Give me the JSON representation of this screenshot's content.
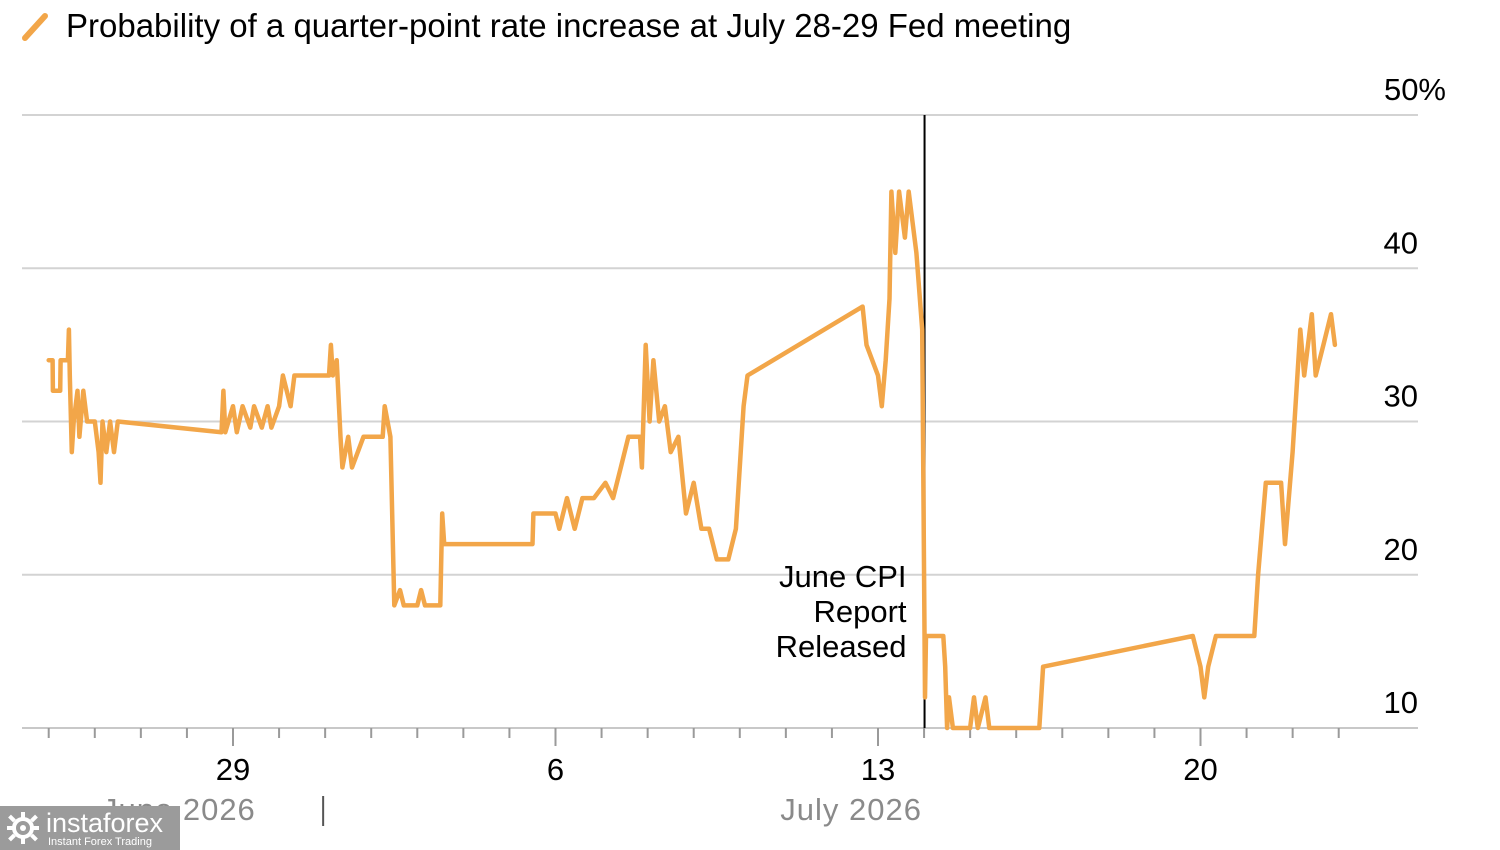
{
  "chart_data": {
    "type": "line",
    "title": "Probability of a quarter-point rate increase at July 28-29 Fed meeting",
    "colors": {
      "series": "#f2a649",
      "event_line": "#000000",
      "grid": "#d3d3d3"
    },
    "ylim": [
      10,
      50
    ],
    "y_ticks": [
      10,
      20,
      30,
      40,
      50
    ],
    "y_tick_labels": [
      "10",
      "20",
      "30",
      "40",
      "50%"
    ],
    "grid": true,
    "x_tick_labels": [
      "29",
      "6",
      "13",
      "20"
    ],
    "month_labels": [
      "June 2026",
      "July 2026"
    ],
    "annotation": {
      "text_lines": [
        "June CPI",
        "Report",
        "Released"
      ]
    },
    "series": [
      {
        "points": [
          [
            "Jun 25 00:00",
            34
          ],
          [
            "Jun 25 02:00",
            34
          ],
          [
            "Jun 25 02:10",
            32
          ],
          [
            "Jun 25 06:00",
            32
          ],
          [
            "Jun 25 06:10",
            34
          ],
          [
            "Jun 25 10:00",
            34
          ],
          [
            "Jun 25 10:30",
            36
          ],
          [
            "Jun 25 11:00",
            33
          ],
          [
            "Jun 25 12:00",
            28
          ],
          [
            "Jun 25 13:00",
            30
          ],
          [
            "Jun 25 15:00",
            32
          ],
          [
            "Jun 25 16:00",
            29
          ],
          [
            "Jun 25 18:00",
            32
          ],
          [
            "Jun 25 20:00",
            30
          ],
          [
            "Jun 26 00:00",
            30
          ],
          [
            "Jun 26 02:00",
            28
          ],
          [
            "Jun 26 03:00",
            26
          ],
          [
            "Jun 26 04:00",
            30
          ],
          [
            "Jun 26 06:00",
            28
          ],
          [
            "Jun 26 08:00",
            30
          ],
          [
            "Jun 26 10:00",
            28
          ],
          [
            "Jun 26 12:00",
            30
          ],
          [
            "Jun 28 18:00",
            29.3
          ],
          [
            "Jun 28 19:00",
            32
          ],
          [
            "Jun 28 20:00",
            29.3
          ],
          [
            "Jun 29 00:00",
            31
          ],
          [
            "Jun 29 02:00",
            29.3
          ],
          [
            "Jun 29 05:00",
            31
          ],
          [
            "Jun 29 09:00",
            29.6
          ],
          [
            "Jun 29 11:00",
            31
          ],
          [
            "Jun 29 15:00",
            29.6
          ],
          [
            "Jun 29 18:00",
            31
          ],
          [
            "Jun 29 20:00",
            29.6
          ],
          [
            "Jun 30 00:00",
            31
          ],
          [
            "Jun 30 02:00",
            33
          ],
          [
            "Jun 30 06:00",
            31
          ],
          [
            "Jun 30 08:00",
            33
          ],
          [
            "Jul 1 02:00",
            33
          ],
          [
            "Jul 1 03:00",
            35
          ],
          [
            "Jul 1 04:00",
            33
          ],
          [
            "Jul 1 06:00",
            34
          ],
          [
            "Jul 1 08:00",
            29
          ],
          [
            "Jul 1 09:00",
            27
          ],
          [
            "Jul 1 12:00",
            29
          ],
          [
            "Jul 1 14:00",
            27
          ],
          [
            "Jul 1 20:00",
            29
          ],
          [
            "Jul 2 06:00",
            29
          ],
          [
            "Jul 2 07:00",
            31
          ],
          [
            "Jul 2 10:00",
            29
          ],
          [
            "Jul 2 12:00",
            18
          ],
          [
            "Jul 2 15:00",
            19
          ],
          [
            "Jul 2 17:00",
            18
          ],
          [
            "Jul 3 00:00",
            18
          ],
          [
            "Jul 3 02:00",
            19
          ],
          [
            "Jul 3 04:00",
            18
          ],
          [
            "Jul 3 12:00",
            18
          ],
          [
            "Jul 3 13:00",
            24
          ],
          [
            "Jul 3 14:00",
            22
          ],
          [
            "Jul 5 12:00",
            22
          ],
          [
            "Jul 5 12:30",
            24
          ],
          [
            "Jul 6 00:00",
            24
          ],
          [
            "Jul 6 02:00",
            23
          ],
          [
            "Jul 6 06:00",
            25
          ],
          [
            "Jul 6 10:00",
            23
          ],
          [
            "Jul 6 14:00",
            25
          ],
          [
            "Jul 6 20:00",
            25
          ],
          [
            "Jul 7 02:00",
            26
          ],
          [
            "Jul 7 06:00",
            25
          ],
          [
            "Jul 7 10:00",
            27
          ],
          [
            "Jul 7 14:00",
            29
          ],
          [
            "Jul 7 20:00",
            29
          ],
          [
            "Jul 7 21:00",
            27
          ],
          [
            "Jul 7 23:00",
            35
          ],
          [
            "Jul 8 01:00",
            30
          ],
          [
            "Jul 8 03:00",
            34
          ],
          [
            "Jul 8 06:00",
            30
          ],
          [
            "Jul 8 09:00",
            31
          ],
          [
            "Jul 8 12:00",
            28
          ],
          [
            "Jul 8 16:00",
            29
          ],
          [
            "Jul 8 20:00",
            24
          ],
          [
            "Jul 9 00:00",
            26
          ],
          [
            "Jul 9 04:00",
            23
          ],
          [
            "Jul 9 08:00",
            23
          ],
          [
            "Jul 9 12:00",
            21
          ],
          [
            "Jul 9 18:00",
            21
          ],
          [
            "Jul 9 22:00",
            23
          ],
          [
            "Jul 10 02:00",
            31
          ],
          [
            "Jul 10 04:00",
            33
          ],
          [
            "Jul 12 16:00",
            37.5
          ],
          [
            "Jul 12 18:00",
            35
          ],
          [
            "Jul 13 00:00",
            33
          ],
          [
            "Jul 13 02:00",
            31
          ],
          [
            "Jul 13 04:00",
            34
          ],
          [
            "Jul 13 06:00",
            38
          ],
          [
            "Jul 13 07:00",
            45
          ],
          [
            "Jul 13 09:00",
            41
          ],
          [
            "Jul 13 11:00",
            45
          ],
          [
            "Jul 13 14:00",
            42
          ],
          [
            "Jul 13 16:00",
            45
          ],
          [
            "Jul 13 20:00",
            41
          ],
          [
            "Jul 13 23:00",
            36
          ],
          [
            "Jul 14 00:30",
            12
          ],
          [
            "Jul 14 01:00",
            16
          ],
          [
            "Jul 14 10:00",
            16
          ],
          [
            "Jul 14 11:00",
            14
          ],
          [
            "Jul 14 12:00",
            10
          ],
          [
            "Jul 14 13:00",
            12
          ],
          [
            "Jul 14 15:00",
            10
          ],
          [
            "Jul 15 00:00",
            10
          ],
          [
            "Jul 15 02:00",
            12
          ],
          [
            "Jul 15 04:00",
            10
          ],
          [
            "Jul 15 08:00",
            12
          ],
          [
            "Jul 15 10:00",
            10
          ],
          [
            "Jul 16 12:00",
            10
          ],
          [
            "Jul 16 14:00",
            14
          ],
          [
            "Jul 19 20:00",
            16
          ],
          [
            "Jul 20 00:00",
            14
          ],
          [
            "Jul 20 02:00",
            12
          ],
          [
            "Jul 20 04:00",
            14
          ],
          [
            "Jul 20 08:00",
            16
          ],
          [
            "Jul 21 04:00",
            16
          ],
          [
            "Jul 21 06:00",
            20
          ],
          [
            "Jul 21 10:00",
            26
          ],
          [
            "Jul 21 18:00",
            26
          ],
          [
            "Jul 21 20:00",
            22
          ],
          [
            "Jul 22 00:00",
            28
          ],
          [
            "Jul 22 04:00",
            36
          ],
          [
            "Jul 22 06:00",
            33
          ],
          [
            "Jul 22 10:00",
            37
          ],
          [
            "Jul 22 12:00",
            33
          ],
          [
            "Jul 22 16:00",
            35
          ],
          [
            "Jul 22 20:00",
            37
          ],
          [
            "Jul 22 22:00",
            35
          ]
        ]
      }
    ]
  },
  "watermark": {
    "name": "instaforex",
    "tagline": "Instant Forex Trading"
  }
}
